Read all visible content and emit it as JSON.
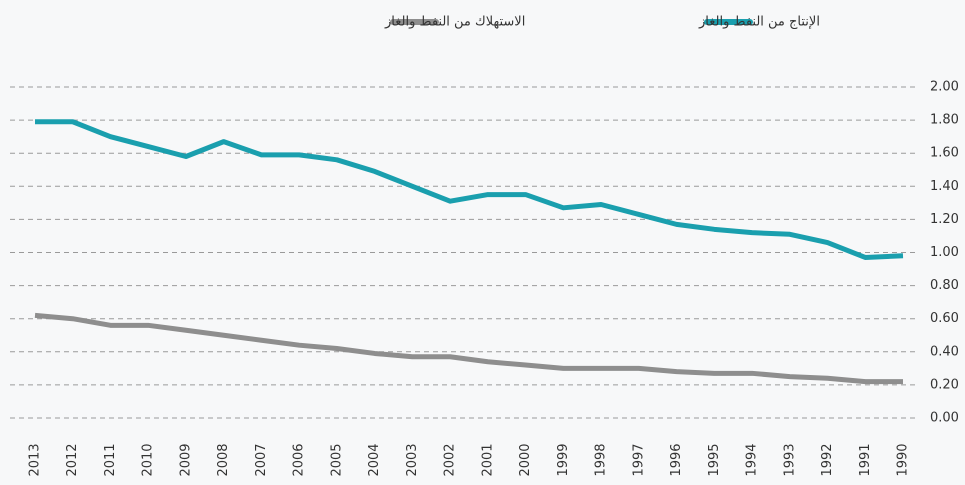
{
  "chart_data": {
    "type": "line",
    "categories": [
      "2013",
      "2012",
      "2011",
      "2010",
      "2009",
      "2008",
      "2007",
      "2006",
      "2005",
      "2004",
      "2003",
      "2002",
      "2001",
      "2000",
      "1999",
      "1998",
      "1997",
      "1996",
      "1995",
      "1994",
      "1993",
      "1992",
      "1991",
      "1990"
    ],
    "series": [
      {
        "name": "الإنتاج من النفط والغاز",
        "color": "#1a9fae",
        "values": [
          1.79,
          1.79,
          1.7,
          1.64,
          1.58,
          1.67,
          1.59,
          1.59,
          1.56,
          1.49,
          1.4,
          1.31,
          1.35,
          1.35,
          1.27,
          1.29,
          1.23,
          1.17,
          1.14,
          1.12,
          1.11,
          1.06,
          0.97,
          0.98
        ]
      },
      {
        "name": "الاستهلاك من النفط والغاز",
        "color": "#8e8e8e",
        "values": [
          0.62,
          0.6,
          0.56,
          0.56,
          0.53,
          0.5,
          0.47,
          0.44,
          0.42,
          0.39,
          0.37,
          0.37,
          0.34,
          0.32,
          0.3,
          0.3,
          0.3,
          0.28,
          0.27,
          0.27,
          0.25,
          0.24,
          0.22,
          0.22
        ]
      }
    ],
    "ylim": [
      0,
      2
    ],
    "yticks": [
      {
        "value": 0,
        "label": "0.00"
      },
      {
        "value": 0.2,
        "label": "0.20"
      },
      {
        "value": 0.4,
        "label": "0.40"
      },
      {
        "value": 0.6,
        "label": "0.60"
      },
      {
        "value": 0.8,
        "label": "0.80"
      },
      {
        "value": 1,
        "label": "1.00"
      },
      {
        "value": 1.2,
        "label": "1.20"
      },
      {
        "value": 1.4,
        "label": "1.40"
      },
      {
        "value": 1.6,
        "label": "1.60"
      },
      {
        "value": 1.8,
        "label": "1.80"
      },
      {
        "value": 2,
        "label": "2.00"
      }
    ],
    "grid": true
  }
}
